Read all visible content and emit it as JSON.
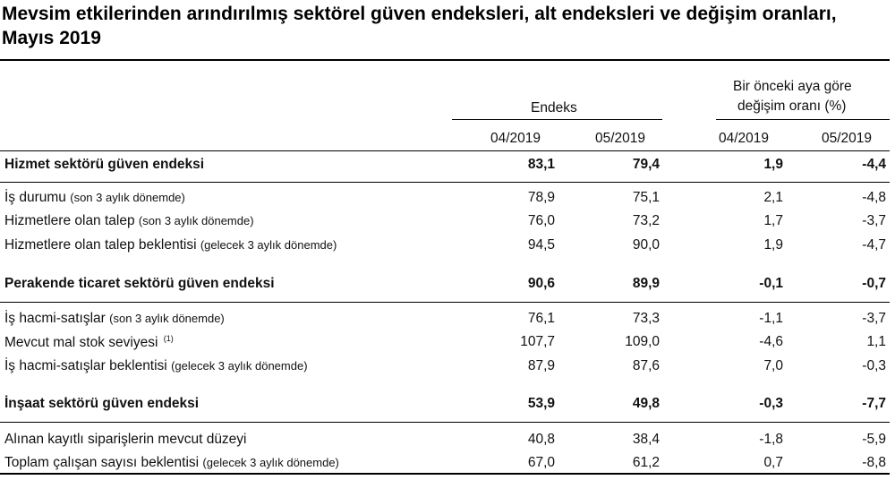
{
  "title": "Mevsim etkilerinden arındırılmış sektörel güven endeksleri, alt endeksleri ve değişim oranları, Mayıs 2019",
  "header": {
    "endeks_label": "Endeks",
    "change_label_1": "Bir önceki aya göre",
    "change_label_2": "değişim oranı (%)",
    "columns": [
      "04/2019",
      "05/2019",
      "04/2019",
      "05/2019"
    ]
  },
  "rows": [
    {
      "label": "Hizmet sektörü güven endeksi",
      "sub": "",
      "sup": "",
      "bold": true,
      "values": [
        "83,1",
        "79,4",
        "1,9",
        "-4,4"
      ]
    },
    {
      "label": "İş durumu ",
      "sub": "(son 3 aylık dönemde)",
      "sup": "",
      "bold": false,
      "values": [
        "78,9",
        "75,1",
        "2,1",
        "-4,8"
      ]
    },
    {
      "label": "Hizmetlere olan talep ",
      "sub": "(son 3 aylık dönemde)",
      "sup": "",
      "bold": false,
      "values": [
        "76,0",
        "73,2",
        "1,7",
        "-3,7"
      ]
    },
    {
      "label": "Hizmetlere olan talep beklentisi ",
      "sub": "(gelecek 3 aylık dönemde)",
      "sup": "",
      "bold": false,
      "values": [
        "94,5",
        "90,0",
        "1,9",
        "-4,7"
      ]
    },
    {
      "label": "Perakende ticaret sektörü güven endeksi",
      "sub": "",
      "sup": "",
      "bold": true,
      "values": [
        "90,6",
        "89,9",
        "-0,1",
        "-0,7"
      ]
    },
    {
      "label": "İş hacmi-satışlar ",
      "sub": "(son 3 aylık dönemde)",
      "sup": "",
      "bold": false,
      "values": [
        "76,1",
        "73,3",
        "-1,1",
        "-3,7"
      ]
    },
    {
      "label": "Mevcut mal stok seviyesi ",
      "sub": "",
      "sup": "(1)",
      "bold": false,
      "values": [
        "107,7",
        "109,0",
        "-4,6",
        "1,1"
      ]
    },
    {
      "label": "İş hacmi-satışlar beklentisi ",
      "sub": "(gelecek 3 aylık dönemde)",
      "sup": "",
      "bold": false,
      "values": [
        "87,9",
        "87,6",
        "7,0",
        "-0,3"
      ]
    },
    {
      "label": "İnşaat sektörü güven endeksi",
      "sub": "",
      "sup": "",
      "bold": true,
      "values": [
        "53,9",
        "49,8",
        "-0,3",
        "-7,7"
      ]
    },
    {
      "label": "Alınan kayıtlı siparişlerin mevcut düzeyi",
      "sub": "",
      "sup": "",
      "bold": false,
      "values": [
        "40,8",
        "38,4",
        "-1,8",
        "-5,9"
      ]
    },
    {
      "label": "Toplam çalışan sayısı beklentisi ",
      "sub": "(gelecek 3 aylık dönemde)",
      "sup": "",
      "bold": false,
      "values": [
        "67,0",
        "61,2",
        "0,7",
        "-8,8"
      ]
    }
  ]
}
